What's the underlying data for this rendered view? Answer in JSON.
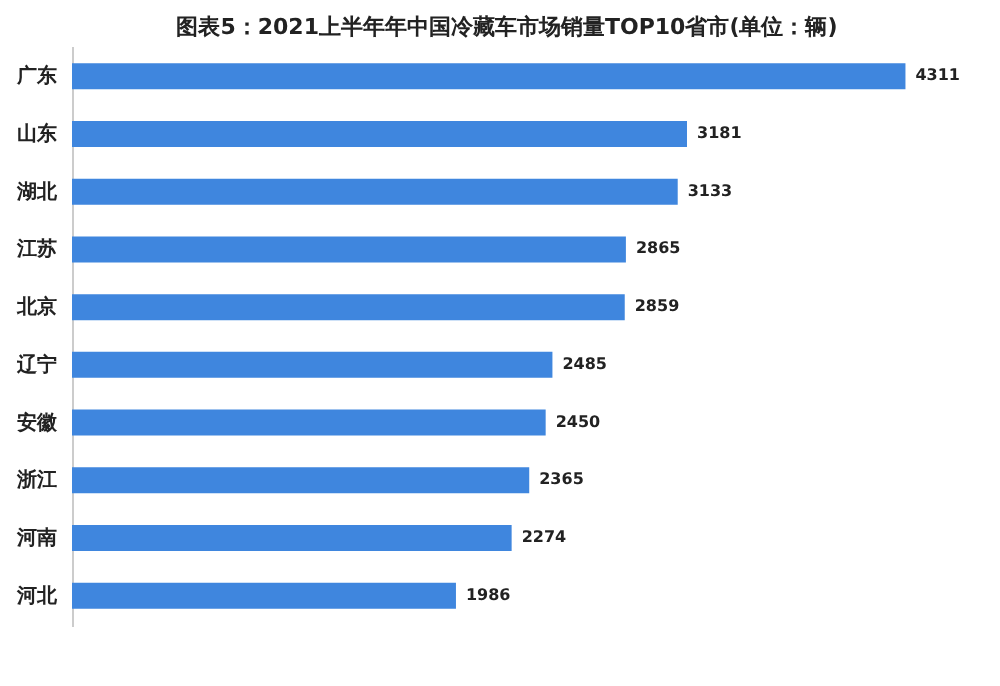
{
  "chart_data": {
    "type": "bar",
    "orientation": "horizontal",
    "title": "图表5：2021上半年年中国冷藏车市场销量TOP10省市(单位：辆)",
    "categories": [
      "广东",
      "山东",
      "湖北",
      "江苏",
      "北京",
      "辽宁",
      "安徽",
      "浙江",
      "河南",
      "河北"
    ],
    "values": [
      4311,
      3181,
      3133,
      2865,
      2859,
      2485,
      2450,
      2365,
      2274,
      1986
    ],
    "color": "#3f86de",
    "data_labels": true,
    "grid": false
  }
}
